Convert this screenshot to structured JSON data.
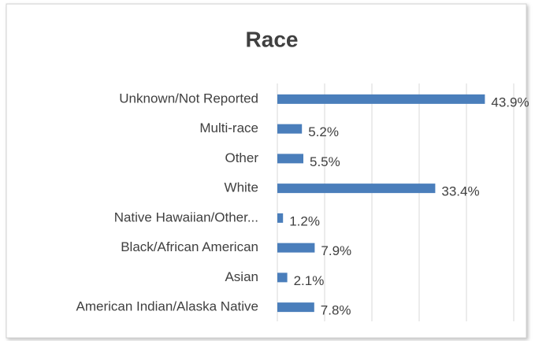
{
  "chart_data": {
    "type": "barh",
    "title": "Race",
    "categories": [
      "Unknown/Not Reported",
      "Multi-race",
      "Other",
      "White",
      "Native Hawaiian/Other...",
      "Black/African American",
      "Asian",
      "American Indian/Alaska Native"
    ],
    "values": [
      43.9,
      5.2,
      5.5,
      33.4,
      1.2,
      7.9,
      2.1,
      7.8
    ],
    "value_labels": [
      "43.9%",
      "5.2%",
      "5.5%",
      "33.4%",
      "1.2%",
      "7.9%",
      "2.1%",
      "7.8%"
    ],
    "color": "#4a7ebb",
    "xlim": [
      0,
      50
    ],
    "xticks": [
      0,
      10,
      20,
      30,
      40,
      50
    ],
    "grid": true
  }
}
